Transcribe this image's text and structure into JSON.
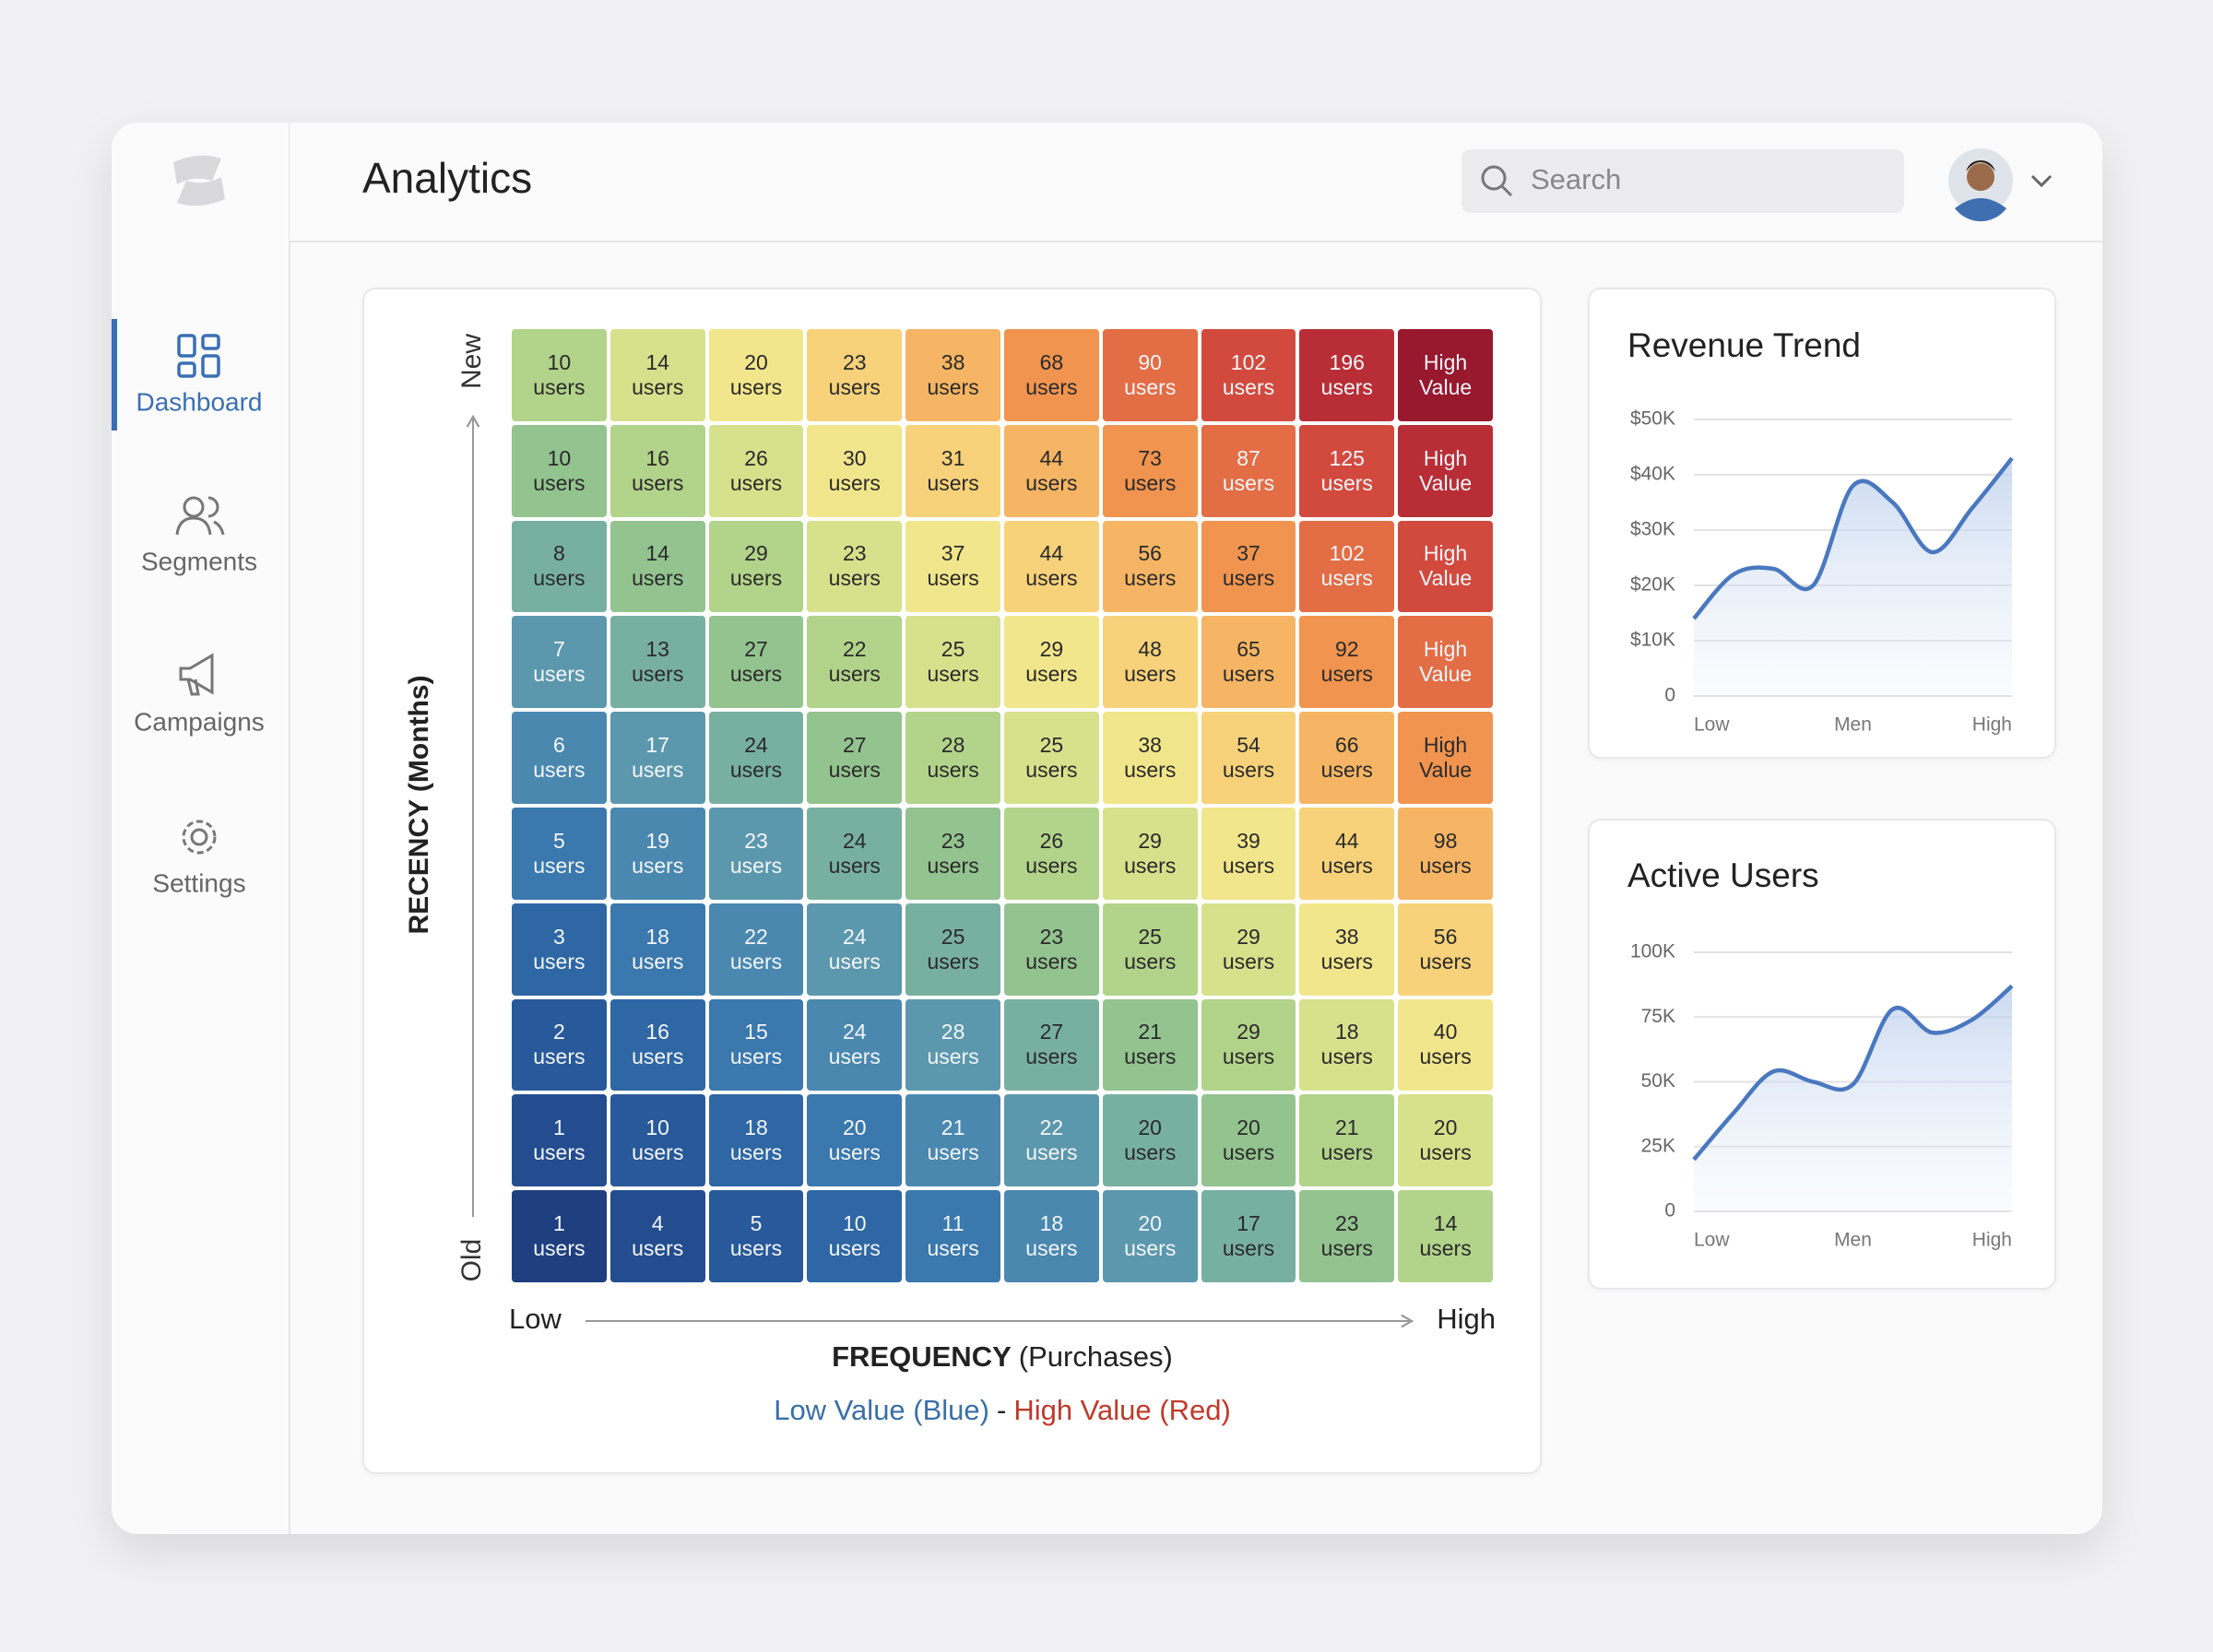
{
  "sidebar": {
    "items": [
      "Dashboard",
      "Segments",
      "Campaigns",
      "Settings"
    ]
  },
  "header": {
    "title": "Analytics",
    "search_placeholder": "Search"
  },
  "chart_data": [
    {
      "type": "heatmap",
      "y_label": "RECENCY (Months)",
      "y_top": "New",
      "y_bottom": "Old",
      "x_label": "FREQUENCY",
      "x_label_unit": "(Purchases)",
      "x_low": "Low",
      "x_high": "High",
      "values": [
        [
          10,
          14,
          20,
          23,
          38,
          68,
          90,
          102,
          196,
          null
        ],
        [
          10,
          16,
          26,
          30,
          31,
          44,
          73,
          87,
          125,
          null
        ],
        [
          8,
          14,
          29,
          23,
          37,
          44,
          56,
          37,
          102,
          null
        ],
        [
          7,
          13,
          27,
          22,
          25,
          29,
          48,
          65,
          92,
          null
        ],
        [
          6,
          17,
          24,
          27,
          28,
          25,
          38,
          54,
          66,
          null
        ],
        [
          5,
          19,
          23,
          24,
          23,
          26,
          29,
          39,
          44,
          98
        ],
        [
          3,
          18,
          22,
          24,
          25,
          23,
          25,
          29,
          38,
          56
        ],
        [
          2,
          16,
          15,
          24,
          28,
          27,
          21,
          29,
          18,
          40
        ],
        [
          1,
          10,
          18,
          20,
          21,
          22,
          20,
          20,
          21,
          20
        ],
        [
          1,
          4,
          5,
          10,
          11,
          18,
          20,
          17,
          23,
          14
        ]
      ],
      "value_labels": [
        [
          "10 users",
          "14 users",
          "20 users",
          "23 users",
          "38 users",
          "68 users",
          "90 users",
          "102 users",
          "196 users",
          "High Value"
        ],
        [
          "10 users",
          "16 users",
          "26 users",
          "30 users",
          "31 users",
          "44 users",
          "73 users",
          "87 users",
          "125 users",
          "High Value"
        ],
        [
          "8 users",
          "14 users",
          "29 users",
          "23 users",
          "37 users",
          "44 users",
          "56 users",
          "37 users",
          "102 users",
          "High Value"
        ],
        [
          "7 users",
          "13 users",
          "27 users",
          "22 users",
          "25 users",
          "29 users",
          "48 users",
          "65 users",
          "92 users",
          "High Value"
        ],
        [
          "6 users",
          "17 users",
          "24 users",
          "27 users",
          "28 users",
          "25 users",
          "38 users",
          "54 users",
          "66 users",
          "High Value"
        ],
        [
          "5 users",
          "19 users",
          "23 users",
          "24 users",
          "23 users",
          "26 users",
          "29 users",
          "39 users",
          "44 users",
          "98 users"
        ],
        [
          "3 users",
          "18 users",
          "22 users",
          "24 users",
          "25 users",
          "23 users",
          "25 users",
          "29 users",
          "38 users",
          "56 users"
        ],
        [
          "2 users",
          "16 users",
          "15 users",
          "24 users",
          "28 users",
          "27 users",
          "21 users",
          "29 users",
          "18 users",
          "40 users"
        ],
        [
          "1 users",
          "10 users",
          "18 users",
          "20 users",
          "21 users",
          "22 users",
          "20 users",
          "20 users",
          "21 users",
          "20 users"
        ],
        [
          "1 users",
          "4 users",
          "5 users",
          "10 users",
          "11 users",
          "18 users",
          "20 users",
          "17 users",
          "23 users",
          "14 users"
        ]
      ],
      "colorscale": [
        "#1f3f80",
        "#234d8f",
        "#28599a",
        "#2e67a4",
        "#3a78ad",
        "#4a88b0",
        "#5c98ad",
        "#78b0a0",
        "#93c38f",
        "#b2d38a",
        "#d6e18c",
        "#f2e68c",
        "#f7d27a",
        "#f5b564",
        "#f0944f",
        "#e36d45",
        "#d24a3e",
        "#b92e36",
        "#98182e"
      ],
      "legend": {
        "low": "Low Value (Blue)",
        "separator": "-",
        "high": "High Value (Red)",
        "low_color": "#3a6fa8",
        "high_color": "#c0392b"
      }
    },
    {
      "type": "line",
      "title": "Revenue Trend",
      "categories": [
        "Low",
        null,
        null,
        null,
        "Men",
        null,
        null,
        null,
        "High"
      ],
      "series": [
        {
          "color": "#4a78c0",
          "values": [
            14000,
            22000,
            23000,
            20000,
            38000,
            35000,
            26000,
            34000,
            43000
          ]
        }
      ],
      "ylim": [
        0,
        50000
      ],
      "yticks": [
        0,
        {
          "value": 10000,
          "label": "$10K"
        },
        {
          "value": 20000,
          "label": "$20K"
        },
        {
          "value": 30000,
          "label": "$30K"
        },
        {
          "value": 40000,
          "label": "$40K"
        },
        {
          "value": 50000,
          "label": "$50K"
        }
      ],
      "grid": true
    },
    {
      "type": "line",
      "title": "Active Users",
      "categories": [
        "Low",
        null,
        null,
        null,
        "Men",
        null,
        null,
        null,
        "High"
      ],
      "series": [
        {
          "color": "#4a78c0",
          "values": [
            20000,
            38000,
            54000,
            50000,
            49000,
            78000,
            69000,
            74000,
            87000
          ]
        }
      ],
      "ylim": [
        0,
        100000
      ],
      "yticks": [
        0,
        {
          "value": 25000,
          "label": "25K"
        },
        {
          "value": 50000,
          "label": "50K"
        },
        {
          "value": 75000,
          "label": "75K"
        },
        {
          "value": 100000,
          "label": "100K"
        }
      ],
      "grid": true
    }
  ]
}
